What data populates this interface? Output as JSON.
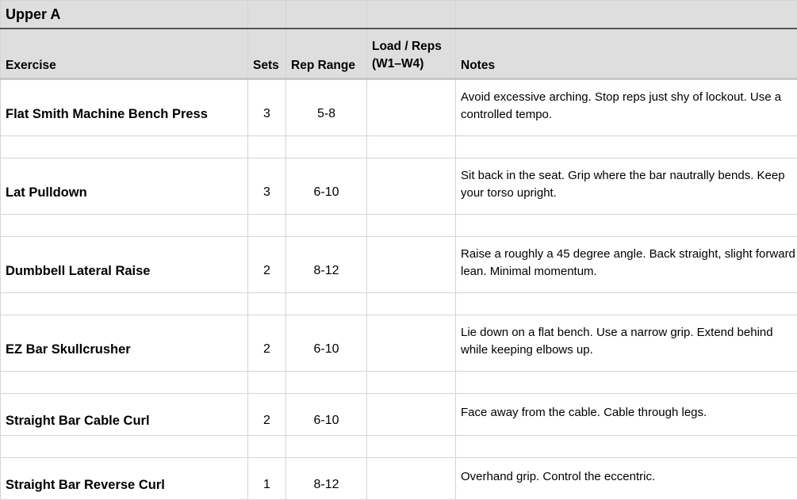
{
  "sheet": {
    "title": "Upper A",
    "headers": {
      "exercise": "Exercise",
      "sets": "Sets",
      "rep_range": "Rep Range",
      "load_reps": "Load / Reps (W1–W4)",
      "notes": "Notes"
    },
    "rows": [
      {
        "exercise": "Flat Smith Machine Bench Press",
        "sets": "3",
        "rep_range": "5-8",
        "load": "",
        "notes": "Avoid excessive arching. Stop reps just shy of lockout. Use a controlled tempo."
      },
      {
        "exercise": "Lat Pulldown",
        "sets": "3",
        "rep_range": "6-10",
        "load": "",
        "notes": "Sit back in the seat. Grip where the bar nautrally bends. Keep your torso upright."
      },
      {
        "exercise": "Dumbbell Lateral Raise",
        "sets": "2",
        "rep_range": "8-12",
        "load": "",
        "notes": "Raise a roughly a 45 degree angle. Back straight, slight forward lean. Minimal momentum."
      },
      {
        "exercise": "EZ Bar Skullcrusher",
        "sets": "2",
        "rep_range": "6-10",
        "load": "",
        "notes": "Lie down on a flat bench. Use a narrow grip. Extend behind while keeping elbows up."
      },
      {
        "exercise": "Straight Bar Cable Curl",
        "sets": "2",
        "rep_range": "6-10",
        "load": "",
        "notes": "Face away from the cable. Cable through legs."
      },
      {
        "exercise": "Straight Bar Reverse Curl",
        "sets": "1",
        "rep_range": "8-12",
        "load": "",
        "notes": "Overhand grip. Control the eccentric."
      }
    ]
  }
}
